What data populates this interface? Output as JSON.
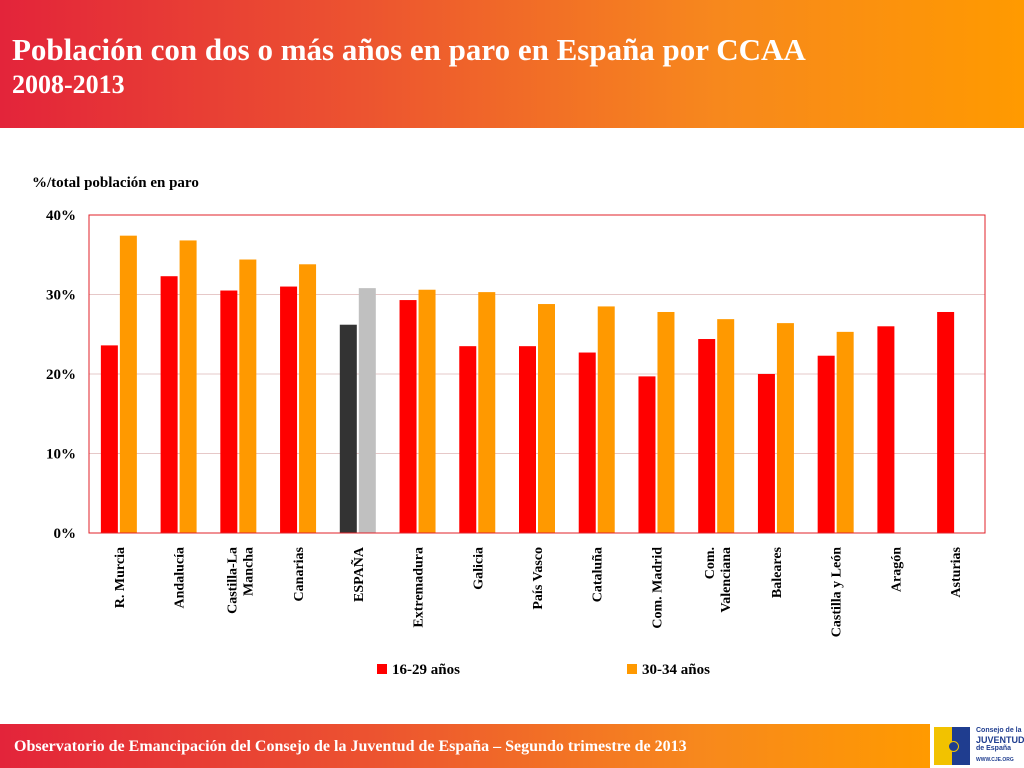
{
  "header": {
    "title": "Población con dos o más años en paro en España por CCAA",
    "subtitle": "2008-2013"
  },
  "chart_data": {
    "type": "bar",
    "title": "Población con dos o más años en paro en España por CCAA",
    "subtitle": "2008-2013",
    "ylabel": "%/total población en paro",
    "ylim": [
      0,
      40
    ],
    "yticks": [
      0,
      10,
      20,
      30,
      40
    ],
    "ytick_labels": [
      "0%",
      "10%",
      "20%",
      "30%",
      "40%"
    ],
    "grid": true,
    "categories": [
      [
        "R. Murcia"
      ],
      [
        "Andalucía"
      ],
      [
        "Castilla-La",
        "Mancha"
      ],
      [
        "Canarias"
      ],
      [
        "ESPAÑA"
      ],
      [
        "Extremadura"
      ],
      [
        "Galicia"
      ],
      [
        "País Vasco"
      ],
      [
        "Cataluña"
      ],
      [
        "Com. Madrid"
      ],
      [
        "Com.",
        "Valenciana"
      ],
      [
        "Baleares"
      ],
      [
        "Castilla y León"
      ],
      [
        "Aragón"
      ],
      [
        "Asturias"
      ]
    ],
    "series": [
      {
        "name": "16-29 años",
        "color": "#ff0000",
        "highlight_color": "#333333",
        "values": [
          23.6,
          32.3,
          30.5,
          31.0,
          26.2,
          29.3,
          23.5,
          23.5,
          22.7,
          19.7,
          24.4,
          20.0,
          22.3,
          26.0,
          27.8
        ]
      },
      {
        "name": "30-34 años",
        "color": "#ff9900",
        "highlight_color": "#c0c0c0",
        "values": [
          37.4,
          36.8,
          34.4,
          33.8,
          30.8,
          30.6,
          30.3,
          28.8,
          28.5,
          27.8,
          26.9,
          26.4,
          25.3,
          null,
          null
        ]
      }
    ],
    "highlight_category_index": 4,
    "legend_position": "bottom"
  },
  "footer": {
    "text": "Observatorio de Emancipación del Consejo de la Juventud de España – Segundo trimestre de 2013"
  },
  "logo": {
    "line1": "Consejo de la",
    "line2": "JUVENTUD",
    "line3": "de España",
    "line4": "WWW.CJE.ORG",
    "icon": "cje-logo-icon"
  }
}
